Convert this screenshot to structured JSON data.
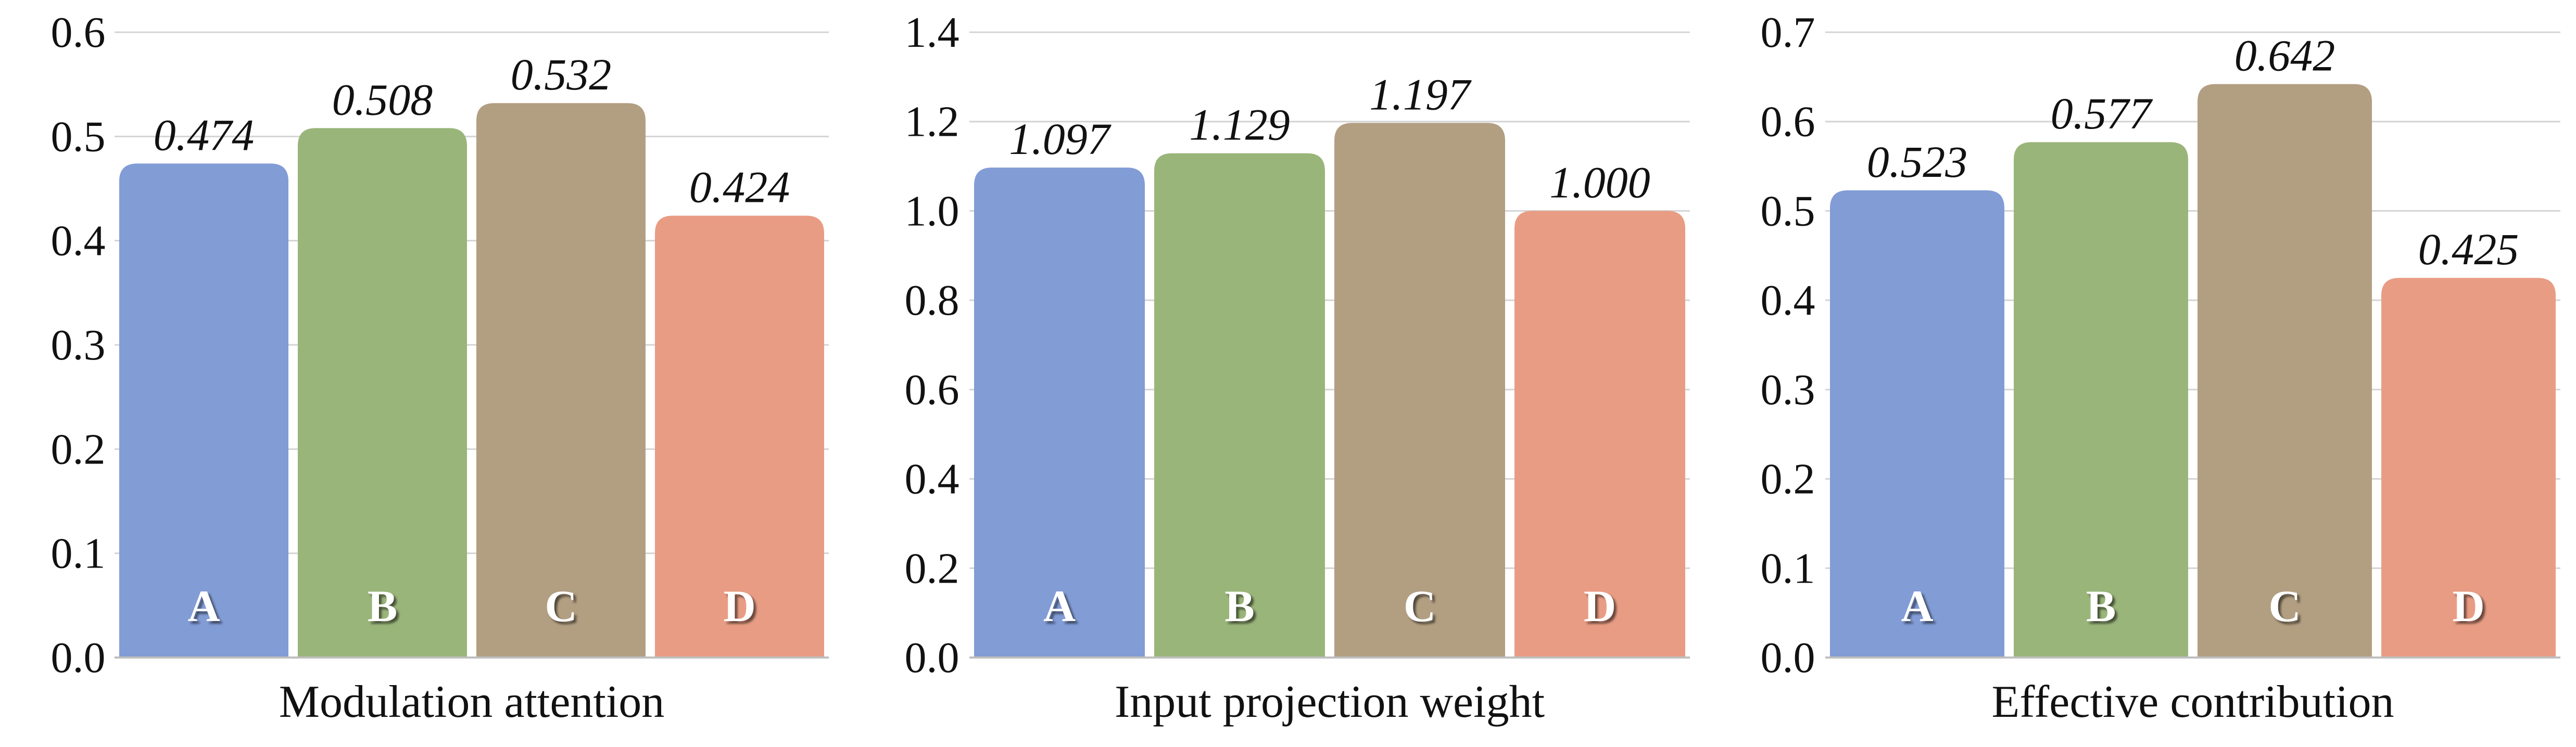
{
  "chart_data": [
    {
      "type": "bar",
      "xlabel": "Modulation attention",
      "categories": [
        "A",
        "B",
        "C",
        "D"
      ],
      "values": [
        0.474,
        0.508,
        0.532,
        0.424
      ],
      "value_labels": [
        "0.474",
        "0.508",
        "0.532",
        "0.424"
      ],
      "ylim": [
        0,
        0.6
      ],
      "ticks": [
        0.0,
        0.1,
        0.2,
        0.3,
        0.4,
        0.5,
        0.6
      ],
      "tick_labels": [
        "0.0",
        "0.1",
        "0.2",
        "0.3",
        "0.4",
        "0.5",
        "0.6"
      ],
      "grid": true,
      "colors": [
        "#829cd6",
        "#9ab57a",
        "#b29f82",
        "#e99c84"
      ]
    },
    {
      "type": "bar",
      "xlabel": "Input projection weight",
      "categories": [
        "A",
        "B",
        "C",
        "D"
      ],
      "values": [
        1.097,
        1.129,
        1.197,
        1.0
      ],
      "value_labels": [
        "1.097",
        "1.129",
        "1.197",
        "1.000"
      ],
      "ylim": [
        0,
        1.4
      ],
      "ticks": [
        0.0,
        0.2,
        0.4,
        0.6,
        0.8,
        1.0,
        1.2,
        1.4
      ],
      "tick_labels": [
        "0.0",
        "0.2",
        "0.4",
        "0.6",
        "0.8",
        "1.0",
        "1.2",
        "1.4"
      ],
      "grid": true,
      "colors": [
        "#829cd6",
        "#9ab57a",
        "#b29f82",
        "#e99c84"
      ]
    },
    {
      "type": "bar",
      "xlabel": "Effective contribution",
      "categories": [
        "A",
        "B",
        "C",
        "D"
      ],
      "values": [
        0.523,
        0.577,
        0.642,
        0.425
      ],
      "value_labels": [
        "0.523",
        "0.577",
        "0.642",
        "0.425"
      ],
      "ylim": [
        0,
        0.7
      ],
      "ticks": [
        0.0,
        0.1,
        0.2,
        0.3,
        0.4,
        0.5,
        0.6,
        0.7
      ],
      "tick_labels": [
        "0.0",
        "0.1",
        "0.2",
        "0.3",
        "0.4",
        "0.5",
        "0.6",
        "0.7"
      ],
      "grid": true,
      "colors": [
        "#829cd6",
        "#9ab57a",
        "#b29f82",
        "#e99c84"
      ]
    }
  ]
}
